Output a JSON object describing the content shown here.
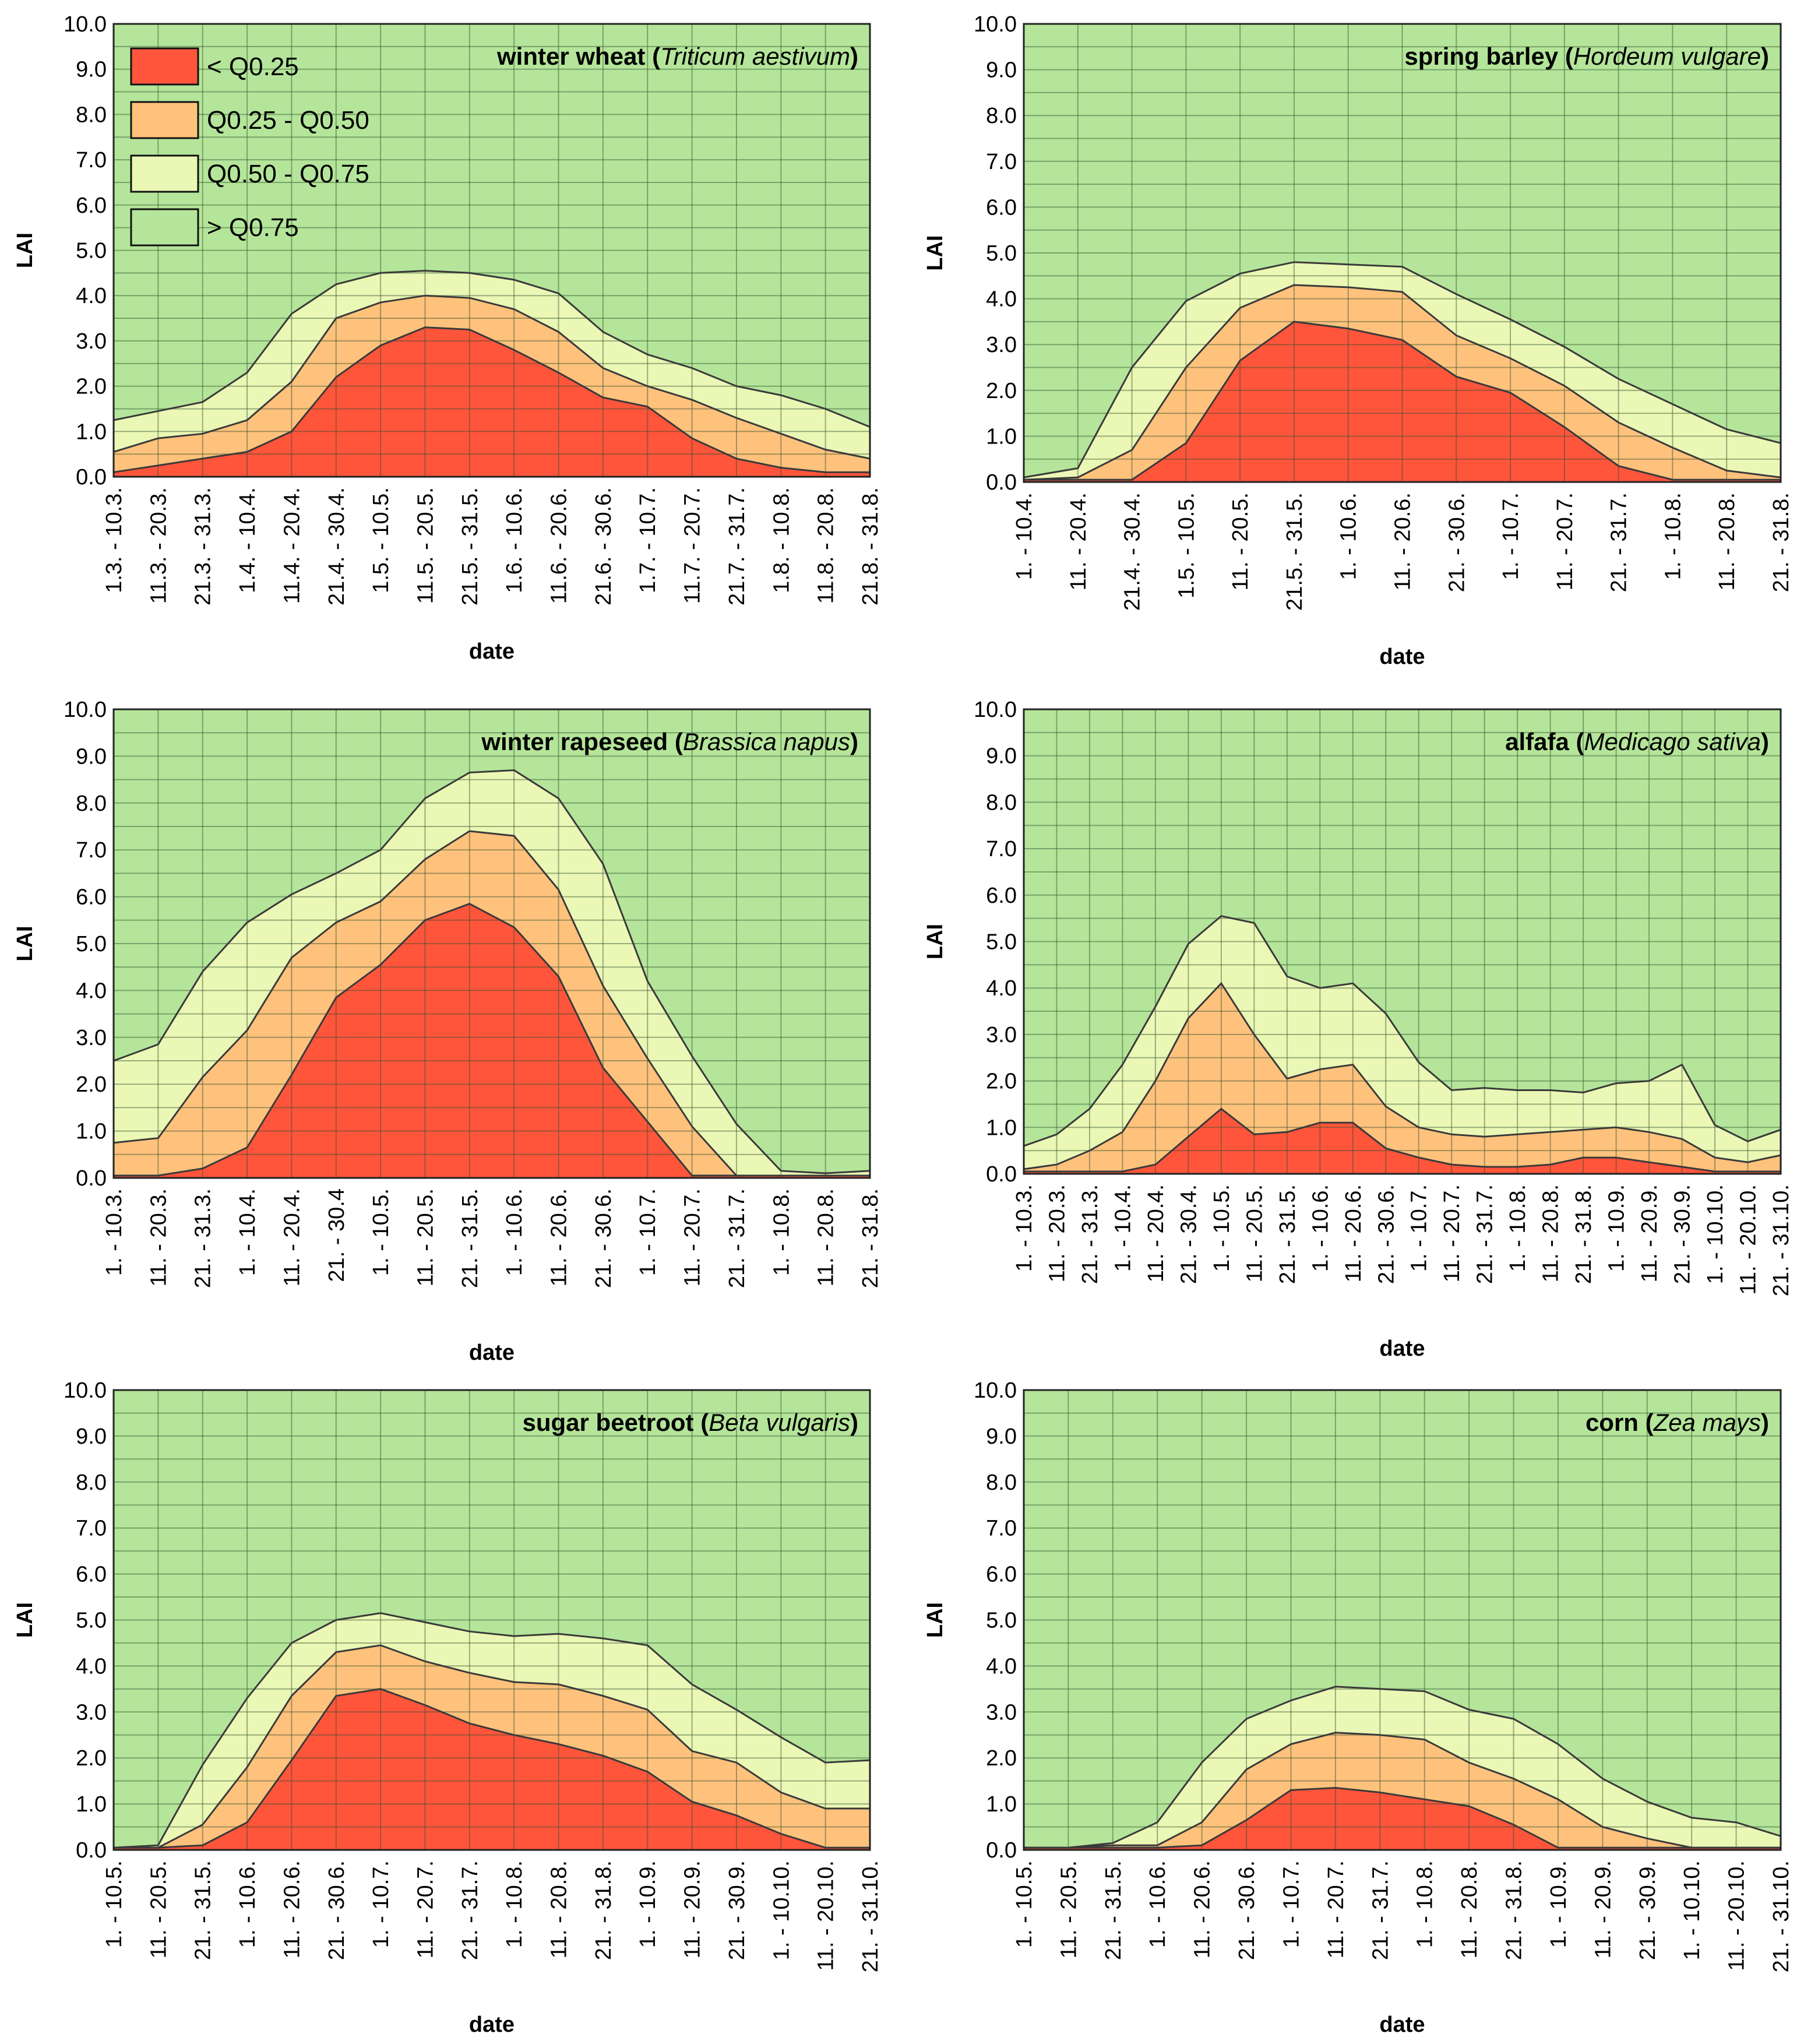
{
  "legend": {
    "items": [
      {
        "label": "< Q0.25",
        "color": "#ff553b"
      },
      {
        "label": "Q0.25 - Q0.50",
        "color": "#ffc27c"
      },
      {
        "label": "Q0.50 - Q0.75",
        "color": "#ebf7b5"
      },
      {
        "label": "> Q0.75",
        "color": "#b5e59a"
      }
    ]
  },
  "chart_data": [
    {
      "type": "area",
      "title_bold": "winter wheat",
      "title_italic": "Triticum aestivum",
      "xlabel": "date",
      "ylabel": "LAI",
      "ylim": [
        0,
        10
      ],
      "yticks": [
        "0.0",
        "1.0",
        "2.0",
        "3.0",
        "4.0",
        "5.0",
        "6.0",
        "7.0",
        "8.0",
        "9.0",
        "10.0"
      ],
      "grid": true,
      "legend_position": "top-left",
      "categories": [
        "1.3. - 10.3.",
        "11.3. - 20.3.",
        "21.3. - 31.3.",
        "1.4. - 10.4.",
        "11.4. - 20.4.",
        "21.4. - 30.4.",
        "1.5. - 10.5.",
        "11.5. - 20.5.",
        "21.5. - 31.5.",
        "1.6. - 10.6.",
        "11.6. - 20.6.",
        "21.6. - 30.6.",
        "1.7. - 10.7.",
        "11.7. - 20.7.",
        "21.7. - 31.7.",
        "1.8. - 10.8.",
        "11.8. - 20.8.",
        "21.8. - 31.8."
      ],
      "series": [
        {
          "name": "< Q0.25",
          "values": [
            0.1,
            0.25,
            0.4,
            0.55,
            1.0,
            2.2,
            2.9,
            3.3,
            3.25,
            2.8,
            2.3,
            1.75,
            1.55,
            0.85,
            0.4,
            0.2,
            0.1,
            0.1
          ]
        },
        {
          "name": "Q0.25 - Q0.50",
          "values": [
            0.55,
            0.85,
            0.95,
            1.25,
            2.1,
            3.5,
            3.85,
            4.0,
            3.95,
            3.7,
            3.2,
            2.4,
            2.0,
            1.7,
            1.3,
            0.95,
            0.6,
            0.4
          ]
        },
        {
          "name": "Q0.50 - Q0.75",
          "values": [
            1.25,
            1.45,
            1.65,
            2.3,
            3.6,
            4.25,
            4.5,
            4.55,
            4.5,
            4.35,
            4.05,
            3.2,
            2.7,
            2.4,
            2.0,
            1.8,
            1.5,
            1.1
          ]
        }
      ]
    },
    {
      "type": "area",
      "title_bold": "spring barley",
      "title_italic": "Hordeum vulgare",
      "xlabel": "date",
      "ylabel": "LAI",
      "ylim": [
        0,
        10
      ],
      "yticks": [
        "0.0",
        "1.0",
        "2.0",
        "3.0",
        "4.0",
        "5.0",
        "6.0",
        "7.0",
        "8.0",
        "9.0",
        "10.0"
      ],
      "grid": true,
      "categories": [
        "1. - 10.4.",
        "11. - 20.4.",
        "21.4. - 30.4.",
        "1.5. - 10.5.",
        "11. - 20.5.",
        "21.5. - 31.5.",
        "1. - 10.6.",
        "11. - 20.6.",
        "21. - 30.6.",
        "1. - 10.7.",
        "11. - 20.7.",
        "21. - 31.7.",
        "1. - 10.8.",
        "11. - 20.8.",
        "21. - 31.8."
      ],
      "series": [
        {
          "name": "< Q0.25",
          "values": [
            0.05,
            0.05,
            0.05,
            0.85,
            2.65,
            3.5,
            3.35,
            3.1,
            2.3,
            1.95,
            1.2,
            0.35,
            0.05,
            0.05,
            0.05
          ]
        },
        {
          "name": "Q0.25 - Q0.50",
          "values": [
            0.05,
            0.1,
            0.7,
            2.5,
            3.8,
            4.3,
            4.25,
            4.15,
            3.2,
            2.7,
            2.1,
            1.3,
            0.75,
            0.25,
            0.1
          ]
        },
        {
          "name": "Q0.50 - Q0.75",
          "values": [
            0.1,
            0.3,
            2.5,
            3.95,
            4.55,
            4.8,
            4.75,
            4.7,
            4.1,
            3.55,
            2.95,
            2.25,
            1.7,
            1.15,
            0.85
          ]
        }
      ]
    },
    {
      "type": "area",
      "title_bold": "winter rapeseed",
      "title_italic": "Brassica napus",
      "xlabel": "date",
      "ylabel": "LAI",
      "ylim": [
        0,
        10
      ],
      "yticks": [
        "0.0",
        "1.0",
        "2.0",
        "3.0",
        "4.0",
        "5.0",
        "6.0",
        "7.0",
        "8.0",
        "9.0",
        "10.0"
      ],
      "grid": true,
      "categories": [
        "1. - 10.3.",
        "11. - 20.3.",
        "21. - 31.3.",
        "1. - 10.4.",
        "11. - 20.4.",
        "21. - 30.4",
        "1. - 10.5.",
        "11. - 20.5.",
        "21. - 31.5.",
        "1. - 10.6.",
        "11. - 20.6.",
        "21. - 30.6.",
        "1. - 10.7.",
        "11. - 20.7.",
        "21. - 31.7.",
        "1. - 10.8.",
        "11. - 20.8.",
        "21. - 31.8."
      ],
      "series": [
        {
          "name": "< Q0.25",
          "values": [
            0.05,
            0.05,
            0.2,
            0.65,
            2.2,
            3.85,
            4.55,
            5.5,
            5.85,
            5.35,
            4.3,
            2.35,
            1.2,
            0.05,
            0.05,
            0.05,
            0.05,
            0.05
          ]
        },
        {
          "name": "Q0.25 - Q0.50",
          "values": [
            0.75,
            0.85,
            2.15,
            3.15,
            4.7,
            5.45,
            5.9,
            6.8,
            7.4,
            7.3,
            6.15,
            4.1,
            2.55,
            1.1,
            0.05,
            0.05,
            0.05,
            0.05
          ]
        },
        {
          "name": "Q0.50 - Q0.75",
          "values": [
            2.5,
            2.85,
            4.4,
            5.45,
            6.05,
            6.5,
            7.0,
            8.1,
            8.65,
            8.7,
            8.1,
            6.7,
            4.2,
            2.6,
            1.15,
            0.15,
            0.1,
            0.15
          ]
        }
      ]
    },
    {
      "type": "area",
      "title_bold": "alfafa",
      "title_italic": "Medicago sativa",
      "xlabel": "date",
      "ylabel": "LAI",
      "ylim": [
        0,
        10
      ],
      "yticks": [
        "0.0",
        "1.0",
        "2.0",
        "3.0",
        "4.0",
        "5.0",
        "6.0",
        "7.0",
        "8.0",
        "9.0",
        "10.0"
      ],
      "grid": true,
      "categories": [
        "1. - 10.3.",
        "11. - 20.3.",
        "21. - 31.3.",
        "1. - 10.4.",
        "11. - 20.4.",
        "21. - 30.4.",
        "1. - 10.5.",
        "11. - 20.5.",
        "21. - 31.5.",
        "1. - 10.6.",
        "11. - 20.6.",
        "21. - 30.6.",
        "1. - 10.7.",
        "11. - 20.7.",
        "21. - 31.7.",
        "1. - 10.8.",
        "11. - 20.8.",
        "21. - 31.8.",
        "1. - 10.9.",
        "11. - 20.9.",
        "21. - 30.9.",
        "1. - 10.10.",
        "11. - 20.10.",
        "21. - 31.10."
      ],
      "series": [
        {
          "name": "< Q0.25",
          "values": [
            0.05,
            0.05,
            0.05,
            0.05,
            0.2,
            0.8,
            1.4,
            0.85,
            0.9,
            1.1,
            1.1,
            0.55,
            0.35,
            0.2,
            0.15,
            0.15,
            0.2,
            0.35,
            0.35,
            0.25,
            0.15,
            0.05,
            0.05,
            0.05
          ]
        },
        {
          "name": "Q0.25 - Q0.50",
          "values": [
            0.1,
            0.2,
            0.5,
            0.9,
            2.0,
            3.35,
            4.1,
            3.0,
            2.05,
            2.25,
            2.35,
            1.45,
            1.0,
            0.85,
            0.8,
            0.85,
            0.9,
            0.95,
            1.0,
            0.9,
            0.75,
            0.35,
            0.25,
            0.4
          ]
        },
        {
          "name": "Q0.50 - Q0.75",
          "values": [
            0.6,
            0.85,
            1.4,
            2.35,
            3.6,
            4.95,
            5.55,
            5.4,
            4.25,
            4.0,
            4.1,
            3.45,
            2.4,
            1.8,
            1.85,
            1.8,
            1.8,
            1.75,
            1.95,
            2.0,
            2.35,
            1.05,
            0.7,
            0.95
          ]
        }
      ]
    },
    {
      "type": "area",
      "title_bold": "sugar beetroot",
      "title_italic": "Beta vulgaris",
      "xlabel": "date",
      "ylabel": "LAI",
      "ylim": [
        0,
        10
      ],
      "yticks": [
        "0.0",
        "1.0",
        "2.0",
        "3.0",
        "4.0",
        "5.0",
        "6.0",
        "7.0",
        "8.0",
        "9.0",
        "10.0"
      ],
      "grid": true,
      "categories": [
        "1. - 10.5.",
        "11. - 20.5.",
        "21. - 31.5.",
        "1. - 10.6.",
        "11. - 20.6.",
        "21. - 30.6.",
        "1. - 10.7.",
        "11. - 20.7.",
        "21. - 31.7.",
        "1. - 10.8.",
        "11. - 20.8.",
        "21. - 31.8.",
        "1. - 10.9.",
        "11. - 20.9.",
        "21. - 30.9.",
        "1. - 10.10.",
        "11. - 20.10.",
        "21. - 31.10."
      ],
      "series": [
        {
          "name": "< Q0.25",
          "values": [
            0.05,
            0.05,
            0.1,
            0.6,
            1.95,
            3.35,
            3.5,
            3.15,
            2.75,
            2.5,
            2.3,
            2.05,
            1.7,
            1.05,
            0.75,
            0.35,
            0.05,
            0.05
          ]
        },
        {
          "name": "Q0.25 - Q0.50",
          "values": [
            0.05,
            0.05,
            0.55,
            1.8,
            3.35,
            4.3,
            4.45,
            4.1,
            3.85,
            3.65,
            3.6,
            3.35,
            3.05,
            2.15,
            1.9,
            1.25,
            0.9,
            0.9
          ]
        },
        {
          "name": "Q0.50 - Q0.75",
          "values": [
            0.05,
            0.1,
            1.85,
            3.3,
            4.5,
            5.0,
            5.15,
            4.95,
            4.75,
            4.65,
            4.7,
            4.6,
            4.45,
            3.6,
            3.05,
            2.45,
            1.9,
            1.95
          ]
        }
      ]
    },
    {
      "type": "area",
      "title_bold": "corn",
      "title_italic": "Zea mays",
      "xlabel": "date",
      "ylabel": "LAI",
      "ylim": [
        0,
        10
      ],
      "yticks": [
        "0.0",
        "1.0",
        "2.0",
        "3.0",
        "4.0",
        "5.0",
        "6.0",
        "7.0",
        "8.0",
        "9.0",
        "10.0"
      ],
      "grid": true,
      "categories": [
        "1. - 10.5.",
        "11. - 20.5.",
        "21. - 31.5.",
        "1. - 10.6.",
        "11. - 20.6.",
        "21. - 30.6.",
        "1. - 10.7.",
        "11. - 20.7.",
        "21. - 31.7.",
        "1. - 10.8.",
        "11. - 20.8.",
        "21. - 31.8.",
        "1. - 10.9.",
        "11. - 20.9.",
        "21. - 30.9.",
        "1. - 10.10.",
        "11. - 20.10.",
        "21. - 31.10."
      ],
      "series": [
        {
          "name": "< Q0.25",
          "values": [
            0.05,
            0.05,
            0.05,
            0.05,
            0.1,
            0.65,
            1.3,
            1.35,
            1.25,
            1.1,
            0.95,
            0.55,
            0.05,
            0.05,
            0.05,
            0.05,
            0.05,
            0.05
          ]
        },
        {
          "name": "Q0.25 - Q0.50",
          "values": [
            0.05,
            0.05,
            0.1,
            0.1,
            0.6,
            1.75,
            2.3,
            2.55,
            2.5,
            2.4,
            1.9,
            1.55,
            1.1,
            0.5,
            0.25,
            0.05,
            0.05,
            0.05
          ]
        },
        {
          "name": "Q0.50 - Q0.75",
          "values": [
            0.05,
            0.05,
            0.15,
            0.6,
            1.9,
            2.85,
            3.25,
            3.55,
            3.5,
            3.45,
            3.05,
            2.85,
            2.3,
            1.55,
            1.05,
            0.7,
            0.6,
            0.3
          ]
        }
      ]
    }
  ]
}
